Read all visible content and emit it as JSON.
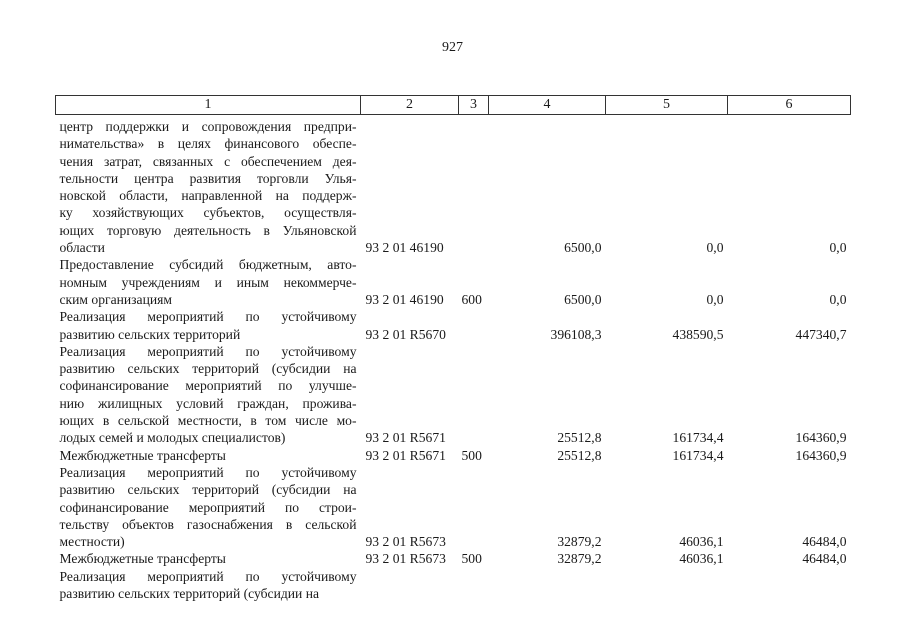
{
  "page_number": "927",
  "header": [
    "1",
    "2",
    "3",
    "4",
    "5",
    "6"
  ],
  "rows": [
    {
      "lines": [
        "центр поддержки и сопровождения предпри-",
        "нимательства» в целях финансового обеспе-",
        "чения затрат, связанных с обеспечением дея-",
        "тельности центра развития торговли Улья-",
        "новской области, направленной на поддерж-",
        "ку хозяйствующих субъектов, осуществля-",
        "ющих торговую деятельность в Ульяновской",
        "области"
      ],
      "code": "93 2 01 46190",
      "vr": "",
      "v4": "6500,0",
      "v5": "0,0",
      "v6": "0,0"
    },
    {
      "lines": [
        "Предоставление субсидий бюджетным, авто-",
        "номным учреждениям и иным некоммерче-",
        "ским организациям"
      ],
      "code": "93 2 01 46190",
      "vr": "600",
      "v4": "6500,0",
      "v5": "0,0",
      "v6": "0,0"
    },
    {
      "lines": [
        "Реализация мероприятий по устойчивому",
        "развитию сельских территорий"
      ],
      "code": "93 2 01 R5670",
      "vr": "",
      "v4": "396108,3",
      "v5": "438590,5",
      "v6": "447340,7"
    },
    {
      "lines": [
        "Реализация мероприятий по устойчивому",
        "развитию сельских территорий (субсидии на",
        "софинансирование мероприятий по улучше-",
        "нию жилищных условий граждан, прожива-",
        "ющих в сельской местности, в том числе мо-",
        "лодых семей и молодых специалистов)"
      ],
      "code": "93 2 01 R5671",
      "vr": "",
      "v4": "25512,8",
      "v5": "161734,4",
      "v6": "164360,9"
    },
    {
      "lines": [
        "Межбюджетные трансферты"
      ],
      "code": "93 2 01 R5671",
      "vr": "500",
      "v4": "25512,8",
      "v5": "161734,4",
      "v6": "164360,9"
    },
    {
      "lines": [
        "Реализация мероприятий по устойчивому",
        "развитию сельских территорий (субсидии на",
        "софинансирование мероприятий по строи-",
        "тельству объектов газоснабжения в сельской",
        "местности)"
      ],
      "code": "93 2 01 R5673",
      "vr": "",
      "v4": "32879,2",
      "v5": "46036,1",
      "v6": "46484,0"
    },
    {
      "lines": [
        "Межбюджетные трансферты"
      ],
      "code": "93 2 01 R5673",
      "vr": "500",
      "v4": "32879,2",
      "v5": "46036,1",
      "v6": "46484,0"
    },
    {
      "lines": [
        "Реализация мероприятий по устойчивому",
        "развитию сельских территорий (субсидии на"
      ],
      "code": "",
      "vr": "",
      "v4": "",
      "v5": "",
      "v6": ""
    }
  ]
}
